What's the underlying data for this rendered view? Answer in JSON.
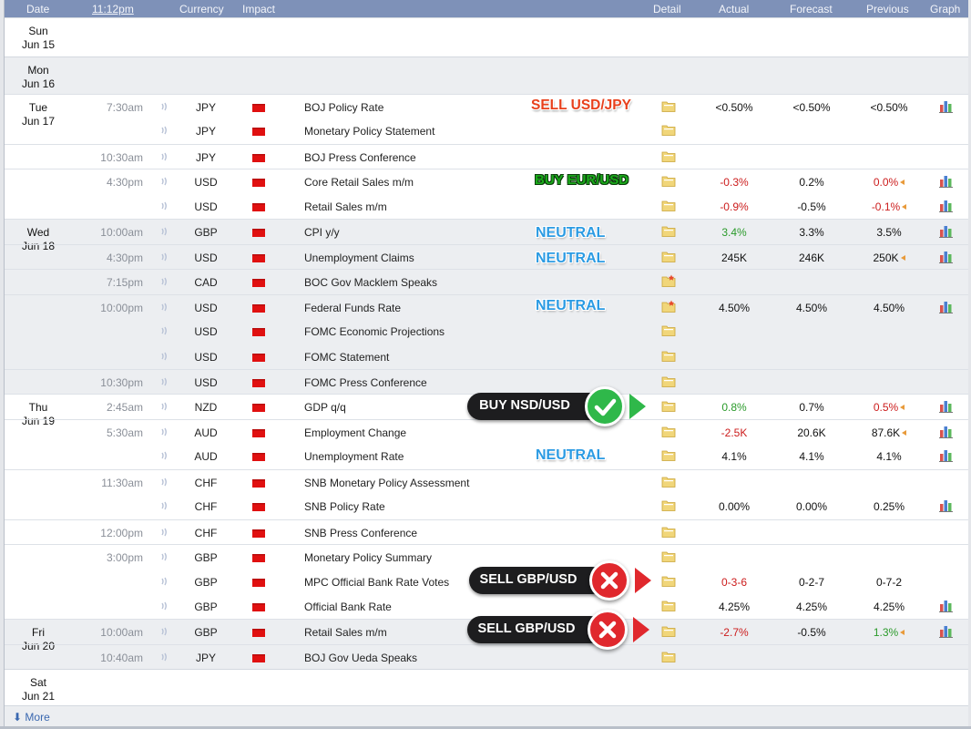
{
  "header": {
    "date": "Date",
    "time": "11:12pm",
    "currency": "Currency",
    "impact": "Impact",
    "detail": "Detail",
    "actual": "Actual",
    "forecast": "Forecast",
    "previous": "Previous",
    "graph": "Graph"
  },
  "days": [
    {
      "dow": "Sun",
      "date": "Jun 15"
    },
    {
      "dow": "Mon",
      "date": "Jun 16"
    },
    {
      "dow": "Tue",
      "date": "Jun 17"
    },
    {
      "dow": "Wed",
      "date": "Jun 18"
    },
    {
      "dow": "Thu",
      "date": "Jun 19"
    },
    {
      "dow": "Fri",
      "date": "Jun 20"
    },
    {
      "dow": "Sat",
      "date": "Jun 21"
    }
  ],
  "events": [
    {
      "time": "7:30am",
      "currency": "JPY",
      "event": "BOJ Policy Rate",
      "actual": "<0.50%",
      "forecast": "<0.50%",
      "previous": "<0.50%"
    },
    {
      "time": "",
      "currency": "JPY",
      "event": "Monetary Policy Statement",
      "actual": "",
      "forecast": "",
      "previous": ""
    },
    {
      "time": "10:30am",
      "currency": "JPY",
      "event": "BOJ Press Conference",
      "actual": "",
      "forecast": "",
      "previous": ""
    },
    {
      "time": "4:30pm",
      "currency": "USD",
      "event": "Core Retail Sales m/m",
      "actual": "-0.3%",
      "forecast": "0.2%",
      "previous": "0.0%"
    },
    {
      "time": "",
      "currency": "USD",
      "event": "Retail Sales m/m",
      "actual": "-0.9%",
      "forecast": "-0.5%",
      "previous": "-0.1%"
    },
    {
      "time": "10:00am",
      "currency": "GBP",
      "event": "CPI y/y",
      "actual": "3.4%",
      "forecast": "3.3%",
      "previous": "3.5%"
    },
    {
      "time": "4:30pm",
      "currency": "USD",
      "event": "Unemployment Claims",
      "actual": "245K",
      "forecast": "246K",
      "previous": "250K"
    },
    {
      "time": "7:15pm",
      "currency": "CAD",
      "event": "BOC Gov Macklem Speaks",
      "actual": "",
      "forecast": "",
      "previous": ""
    },
    {
      "time": "10:00pm",
      "currency": "USD",
      "event": "Federal Funds Rate",
      "actual": "4.50%",
      "forecast": "4.50%",
      "previous": "4.50%"
    },
    {
      "time": "",
      "currency": "USD",
      "event": "FOMC Economic Projections",
      "actual": "",
      "forecast": "",
      "previous": ""
    },
    {
      "time": "",
      "currency": "USD",
      "event": "FOMC Statement",
      "actual": "",
      "forecast": "",
      "previous": ""
    },
    {
      "time": "10:30pm",
      "currency": "USD",
      "event": "FOMC Press Conference",
      "actual": "",
      "forecast": "",
      "previous": ""
    },
    {
      "time": "2:45am",
      "currency": "NZD",
      "event": "GDP q/q",
      "actual": "0.8%",
      "forecast": "0.7%",
      "previous": "0.5%"
    },
    {
      "time": "5:30am",
      "currency": "AUD",
      "event": "Employment Change",
      "actual": "-2.5K",
      "forecast": "20.6K",
      "previous": "87.6K"
    },
    {
      "time": "",
      "currency": "AUD",
      "event": "Unemployment Rate",
      "actual": "4.1%",
      "forecast": "4.1%",
      "previous": "4.1%"
    },
    {
      "time": "11:30am",
      "currency": "CHF",
      "event": "SNB Monetary Policy Assessment",
      "actual": "",
      "forecast": "",
      "previous": ""
    },
    {
      "time": "",
      "currency": "CHF",
      "event": "SNB Policy Rate",
      "actual": "0.00%",
      "forecast": "0.00%",
      "previous": "0.25%"
    },
    {
      "time": "12:00pm",
      "currency": "CHF",
      "event": "SNB Press Conference",
      "actual": "",
      "forecast": "",
      "previous": ""
    },
    {
      "time": "3:00pm",
      "currency": "GBP",
      "event": "Monetary Policy Summary",
      "actual": "",
      "forecast": "",
      "previous": ""
    },
    {
      "time": "",
      "currency": "GBP",
      "event": "MPC Official Bank Rate Votes",
      "actual": "0-3-6",
      "forecast": "0-2-7",
      "previous": "0-7-2"
    },
    {
      "time": "",
      "currency": "GBP",
      "event": "Official Bank Rate",
      "actual": "4.25%",
      "forecast": "4.25%",
      "previous": "4.25%"
    },
    {
      "time": "10:00am",
      "currency": "GBP",
      "event": "Retail Sales m/m",
      "actual": "-2.7%",
      "forecast": "-0.5%",
      "previous": "1.3%"
    },
    {
      "time": "10:40am",
      "currency": "JPY",
      "event": "BOJ Gov Ueda Speaks",
      "actual": "",
      "forecast": "",
      "previous": ""
    }
  ],
  "signals": {
    "boj": "SELL USD/JPY",
    "retail": "BUY EUR/USD",
    "cpi": "NEUTRAL",
    "claims": "NEUTRAL",
    "fed": "NEUTRAL",
    "unemp": "NEUTRAL",
    "gdp": "BUY NSD/USD",
    "mpc": "SELL GBP/USD",
    "gbp_retail": "SELL GBP/USD"
  },
  "footer": {
    "more": "More"
  },
  "colors": {
    "header_bg": "#7e91b8",
    "impact_high": "#e01010",
    "positive": "#2a9a2a",
    "negative": "#cc1c1c"
  }
}
